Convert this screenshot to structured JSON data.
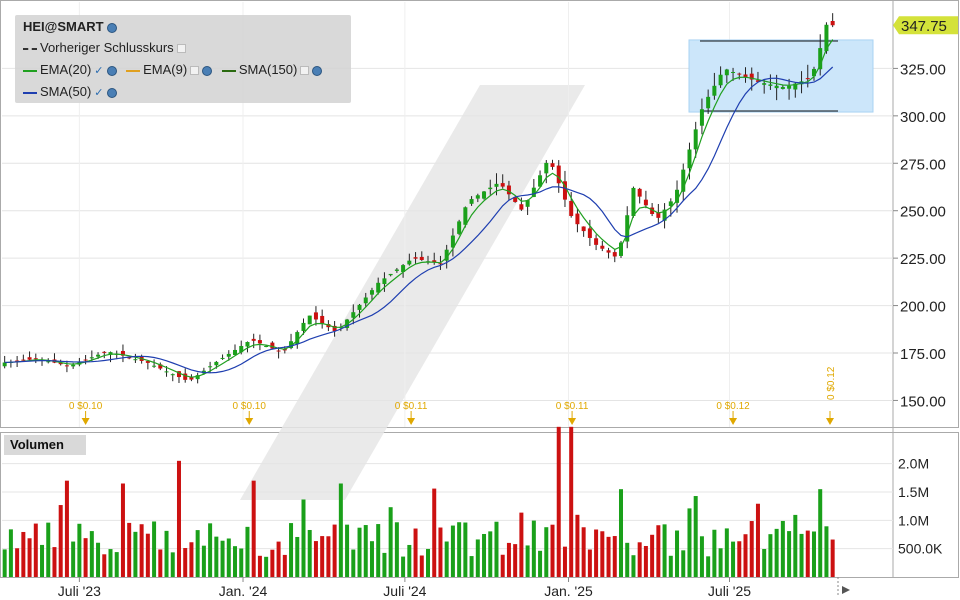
{
  "chart_data": {
    "type": "candlestick",
    "symbol": "HEI@SMART",
    "legend": {
      "prev_close": "Vorheriger Schlusskurs",
      "ema20": "EMA(20)",
      "ema9": "EMA(9)",
      "sma150": "SMA(150)",
      "sma50": "SMA(50)"
    },
    "last_price_label": "347.75",
    "y_ticks": [
      "150.00",
      "175.00",
      "200.00",
      "225.00",
      "250.00",
      "275.00",
      "300.00",
      "325.00"
    ],
    "ylim": [
      136,
      360
    ],
    "x_labels": [
      "Juli '23",
      "Jan. '24",
      "Juli '24",
      "Jan. '25",
      "Juli '25"
    ],
    "volume_title": "Volumen",
    "volume_ticks": [
      "500.0K",
      "1.0M",
      "1.5M",
      "2.0M"
    ],
    "volume_ylim": [
      0,
      2400000
    ],
    "dividends": [
      "0 $0.10",
      "0 $0.10",
      "0 $0.11",
      "0 $0.11",
      "0 $0.12",
      "0 $0.12"
    ],
    "consolidation_box": {
      "low": 302,
      "high": 340
    },
    "colors": {
      "up": "#1aa01a",
      "down": "#cc1111",
      "ema20": "#20a020",
      "sma50": "#1f3fb0",
      "ema9": "#e0a020",
      "sma150": "#2a6a10",
      "box": "#cce6fa",
      "last_price_bg": "#d4e23a",
      "dividend": "#e0a800"
    },
    "anchors": [
      {
        "d": "2023-04-10",
        "p": 170
      },
      {
        "d": "2023-05-15",
        "p": 172
      },
      {
        "d": "2023-06-20",
        "p": 168
      },
      {
        "d": "2023-08-01",
        "p": 176
      },
      {
        "d": "2023-09-15",
        "p": 170
      },
      {
        "d": "2023-11-01",
        "p": 160
      },
      {
        "d": "2023-12-01",
        "p": 170
      },
      {
        "d": "2024-01-10",
        "p": 182
      },
      {
        "d": "2024-02-15",
        "p": 175
      },
      {
        "d": "2024-03-15",
        "p": 195
      },
      {
        "d": "2024-04-15",
        "p": 186
      },
      {
        "d": "2024-06-01",
        "p": 212
      },
      {
        "d": "2024-07-10",
        "p": 225
      },
      {
        "d": "2024-08-10",
        "p": 222
      },
      {
        "d": "2024-09-10",
        "p": 255
      },
      {
        "d": "2024-10-15",
        "p": 265
      },
      {
        "d": "2024-11-10",
        "p": 250
      },
      {
        "d": "2024-12-10",
        "p": 278
      },
      {
        "d": "2025-01-05",
        "p": 246
      },
      {
        "d": "2025-02-01",
        "p": 232
      },
      {
        "d": "2025-02-25",
        "p": 225
      },
      {
        "d": "2025-03-15",
        "p": 262
      },
      {
        "d": "2025-04-10",
        "p": 245
      },
      {
        "d": "2025-05-01",
        "p": 258
      },
      {
        "d": "2025-06-01",
        "p": 305
      },
      {
        "d": "2025-06-25",
        "p": 325
      },
      {
        "d": "2025-08-01",
        "p": 318
      },
      {
        "d": "2025-09-01",
        "p": 315
      },
      {
        "d": "2025-10-01",
        "p": 320
      },
      {
        "d": "2025-10-15",
        "p": 342
      },
      {
        "d": "2025-10-20",
        "p": 352
      },
      {
        "d": "2025-10-25",
        "p": 347.75
      }
    ]
  }
}
